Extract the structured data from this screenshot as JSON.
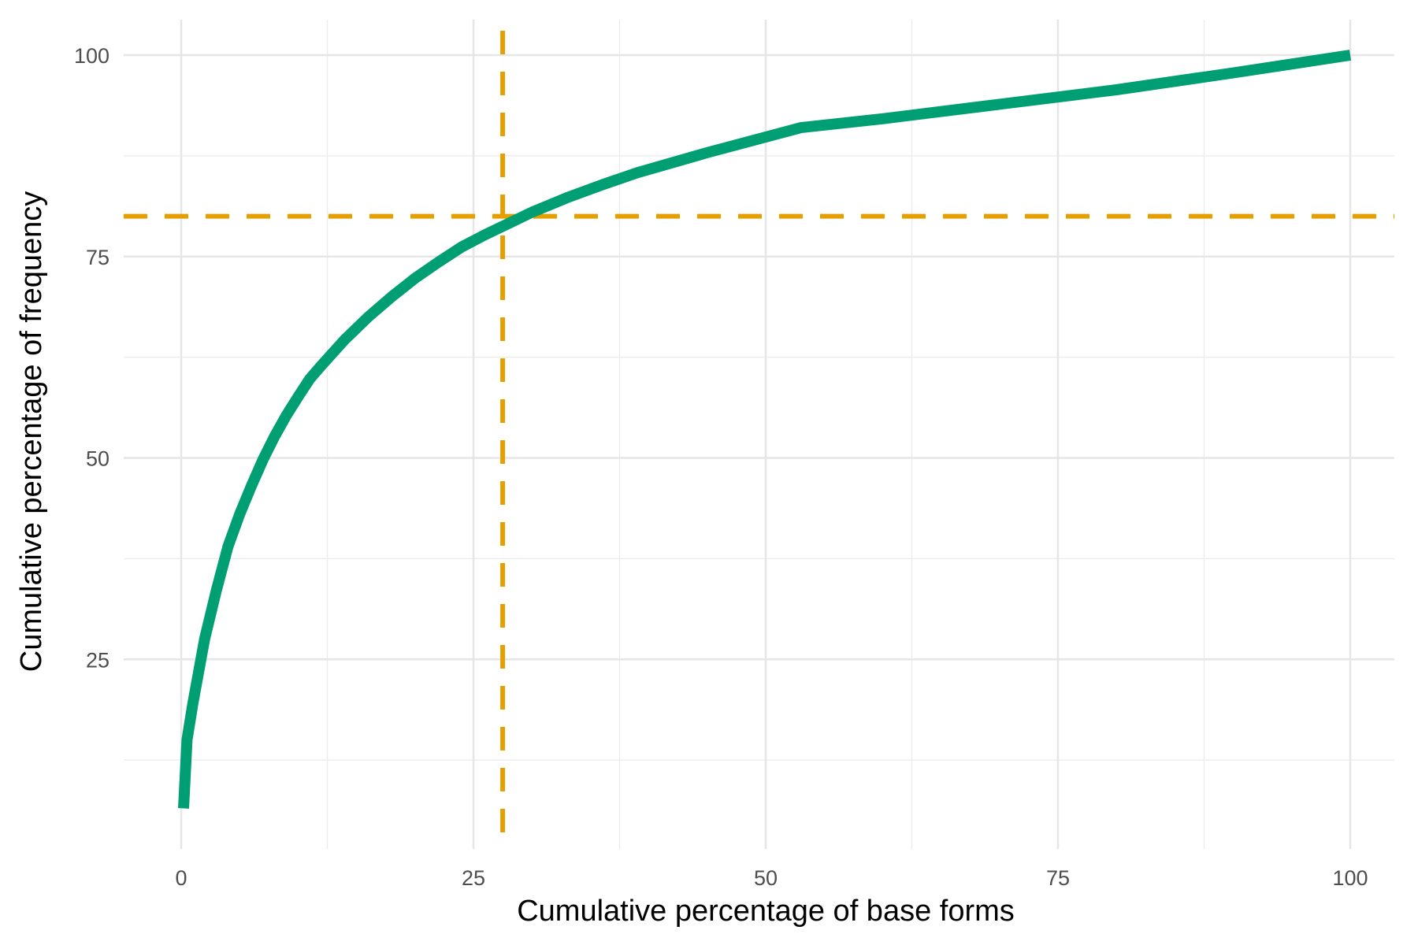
{
  "chart_data": {
    "type": "line",
    "title": "",
    "xlabel": "Cumulative percentage of base forms",
    "ylabel": "Cumulative percentage of frequency",
    "xlim": [
      -5,
      104
    ],
    "ylim": [
      3,
      105
    ],
    "x_ticks": [
      0,
      25,
      50,
      75,
      100
    ],
    "y_ticks": [
      25,
      50,
      75,
      100
    ],
    "x_tick_labels": [
      "0",
      "25",
      "50",
      "75",
      "100"
    ],
    "y_tick_labels": [
      "25",
      "50",
      "75",
      "100"
    ],
    "grid": true,
    "legend": "none",
    "series": [
      {
        "color": "#009E73",
        "x": [
          0.2,
          0.5,
          1,
          2,
          3,
          4,
          5,
          6,
          7,
          8,
          9,
          10,
          11,
          12,
          14,
          16,
          18,
          20,
          22,
          24,
          26,
          28,
          30,
          33,
          36,
          39,
          45,
          53,
          60,
          70,
          80,
          90,
          100
        ],
        "y": [
          6.5,
          15,
          19.5,
          27.5,
          33.5,
          39,
          43,
          46.5,
          49.8,
          52.7,
          55.3,
          57.6,
          59.8,
          61.5,
          64.7,
          67.5,
          70,
          72.3,
          74.3,
          76.2,
          77.7,
          79.1,
          80.5,
          82.3,
          83.9,
          85.4,
          87.9,
          91.0,
          92.1,
          93.9,
          95.7,
          97.8,
          100
        ]
      }
    ],
    "reference_lines": [
      {
        "orientation": "horizontal",
        "value": 80,
        "style": "dashed",
        "color": "#E69F00"
      },
      {
        "orientation": "vertical",
        "value": 27.5,
        "style": "dashed",
        "color": "#E69F00"
      }
    ]
  }
}
